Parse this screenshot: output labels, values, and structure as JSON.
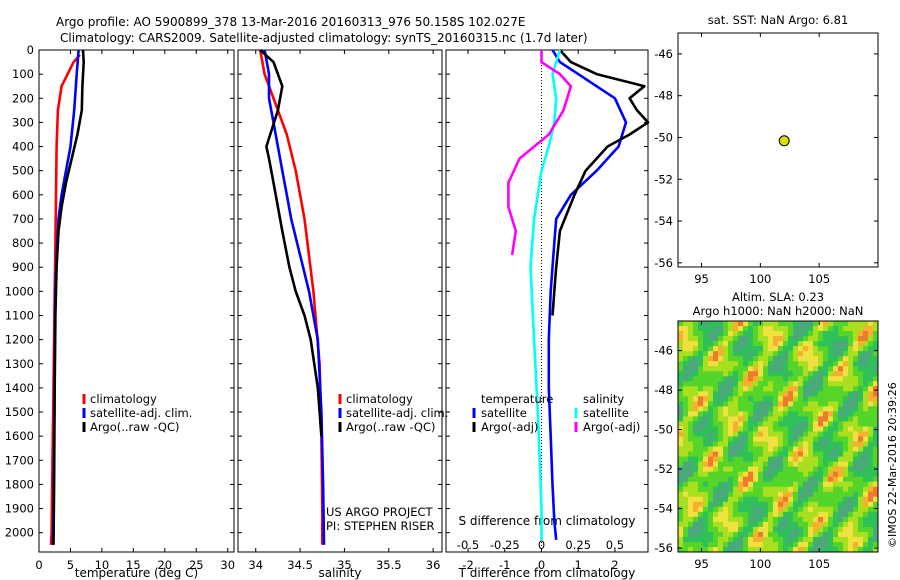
{
  "header": {
    "title_line1": "Argo profile: AO 5900899_378 13-Mar-2016 20160313_976 50.158S 102.027E",
    "title_line2": "Climatology: CARS2009. Satellite-adjusted climatology: synTS_20160315.nc (1.7d later)"
  },
  "colors": {
    "climatology": "#ff0000",
    "satellite": "#0000ff",
    "argo": "#000000",
    "salinity_sat": "#00ffff",
    "salinity_argo": "#ff00ff",
    "marker": "#dddd00"
  },
  "chart_data": [
    {
      "id": "temperature",
      "type": "line",
      "xlabel": "temperature (deg C)",
      "xlim": [
        0,
        31
      ],
      "ylim": [
        2080,
        0
      ],
      "xticks": [
        0,
        5,
        10,
        15,
        20,
        25,
        30
      ],
      "yticks": [
        0,
        100,
        200,
        300,
        400,
        500,
        600,
        700,
        800,
        900,
        1000,
        1100,
        1200,
        1300,
        1400,
        1500,
        1600,
        1700,
        1800,
        1900,
        2000
      ],
      "legend": [
        "climatology",
        "satellite-adj. clim.",
        "Argo(..raw -QC)"
      ],
      "series": [
        {
          "name": "climatology",
          "color": "#ff0000",
          "x": [
            6.5,
            5.5,
            3.6,
            3.0,
            2.8,
            2.7,
            2.6,
            2.5,
            2.4,
            2.3,
            2.2,
            2.1,
            2.0,
            1.9
          ],
          "y": [
            20,
            50,
            150,
            250,
            400,
            600,
            800,
            1000,
            1200,
            1400,
            1600,
            1800,
            2000,
            2050
          ]
        },
        {
          "name": "satellite-adj. clim.",
          "color": "#0000ff",
          "x": [
            6.3,
            6.0,
            5.6,
            5.0,
            4.3,
            3.6,
            3.1,
            2.8,
            2.6,
            2.5,
            2.4,
            2.3,
            2.2
          ],
          "y": [
            0,
            100,
            250,
            400,
            500,
            600,
            700,
            850,
            1000,
            1300,
            1600,
            1900,
            2050
          ]
        },
        {
          "name": "Argo(..raw -QC)",
          "color": "#000000",
          "x": [
            7.0,
            7.1,
            6.9,
            6.8,
            6.1,
            5.2,
            4.3,
            3.6,
            3.1,
            2.8,
            2.6,
            2.5,
            2.4,
            2.3
          ],
          "y": [
            0,
            50,
            150,
            250,
            350,
            450,
            550,
            650,
            750,
            900,
            1100,
            1400,
            1800,
            2050
          ]
        }
      ]
    },
    {
      "id": "salinity",
      "type": "line",
      "xlabel": "salinity",
      "xlim": [
        33.8,
        36.1
      ],
      "ylim": [
        2080,
        0
      ],
      "xticks": [
        34,
        34.5,
        35,
        35.5,
        36
      ],
      "xticklabels": [
        "34",
        "34.5",
        "35",
        "35.5",
        "36"
      ],
      "legend": [
        "climatology",
        "satellite-adj. clim.",
        "Argo(..raw -QC)"
      ],
      "annotations": [
        "US ARGO PROJECT",
        "PI: STEPHEN RISER"
      ],
      "series": [
        {
          "name": "climatology",
          "color": "#ff0000",
          "x": [
            34.05,
            34.1,
            34.2,
            34.35,
            34.45,
            34.55,
            34.65,
            34.72,
            34.74,
            34.75,
            34.75
          ],
          "y": [
            0,
            100,
            200,
            350,
            500,
            700,
            1000,
            1300,
            1600,
            1900,
            2050
          ]
        },
        {
          "name": "satellite-adj. clim.",
          "color": "#0000ff",
          "x": [
            34.1,
            34.15,
            34.15,
            34.2,
            34.25,
            34.3,
            34.35,
            34.4,
            34.5,
            34.6,
            34.7,
            34.74,
            34.76,
            34.77
          ],
          "y": [
            0,
            100,
            200,
            300,
            400,
            500,
            600,
            700,
            850,
            1000,
            1200,
            1500,
            1800,
            2050
          ]
        },
        {
          "name": "Argo(..raw -QC)",
          "color": "#000000",
          "x": [
            34.05,
            34.2,
            34.25,
            34.3,
            34.25,
            34.12,
            34.15,
            34.2,
            34.25,
            34.3,
            34.38,
            34.45,
            34.55,
            34.62,
            34.7,
            34.74
          ],
          "y": [
            0,
            50,
            100,
            150,
            250,
            400,
            450,
            550,
            650,
            750,
            900,
            1000,
            1100,
            1200,
            1400,
            1600
          ]
        }
      ]
    },
    {
      "id": "difference",
      "type": "line",
      "xlabel": "T difference from climatology",
      "xlabel_top": "S difference from climatology",
      "xlim": [
        -2.6,
        2.9
      ],
      "ylim": [
        2080,
        0
      ],
      "xticks": [
        -2,
        -1,
        0,
        1,
        2
      ],
      "top_xticks": [
        -0.5,
        -0.25,
        0,
        0.25,
        0.5
      ],
      "legend_headers": [
        "temperature",
        "salinity"
      ],
      "legend": [
        "satellite",
        "Argo(-adj)",
        "satellite",
        "Argo(-adj)"
      ],
      "series": [
        {
          "name": "temperature satellite",
          "color": "#0000ff",
          "x": [
            0.3,
            0.5,
            1.0,
            2.0,
            2.3,
            2.1,
            1.5,
            0.8,
            0.4,
            0.35,
            0.3,
            0.25,
            0.2,
            0.2,
            0.25,
            0.3,
            0.35,
            0.4
          ],
          "y": [
            0,
            50,
            100,
            200,
            300,
            400,
            500,
            600,
            700,
            800,
            900,
            1000,
            1200,
            1400,
            1600,
            1800,
            1950,
            2030
          ]
        },
        {
          "name": "temperature Argo(-adj)",
          "color": "#000000",
          "x": [
            0.5,
            0.8,
            1.5,
            2.8,
            2.4,
            2.6,
            2.9,
            2.4,
            1.8,
            1.5,
            1.2,
            0.9,
            0.5,
            0.4,
            0.35,
            0.3
          ],
          "y": [
            0,
            50,
            100,
            150,
            200,
            250,
            300,
            350,
            400,
            450,
            500,
            600,
            750,
            900,
            1000,
            1100
          ]
        },
        {
          "name": "salinity satellite",
          "color": "#00ffff",
          "x": [
            0.5,
            0.3,
            0.4,
            0.35,
            0.2,
            0.0,
            -0.2,
            -0.3,
            -0.2,
            -0.1,
            -0.05,
            0.0,
            0.0
          ],
          "y": [
            0,
            100,
            200,
            300,
            400,
            500,
            700,
            900,
            1200,
            1500,
            1700,
            1900,
            2030
          ]
        },
        {
          "name": "salinity Argo(-adj)",
          "color": "#ff00ff",
          "x": [
            0.0,
            0.0,
            0.5,
            0.8,
            0.6,
            0.2,
            -0.6,
            -0.9,
            -0.9,
            -0.7,
            -0.8
          ],
          "y": [
            0,
            50,
            100,
            150,
            250,
            350,
            450,
            550,
            650,
            750,
            850
          ]
        }
      ]
    },
    {
      "id": "sst_location",
      "type": "scatter",
      "title": "sat. SST: NaN Argo: 6.81",
      "xlim": [
        93,
        110
      ],
      "ylim": [
        -56.2,
        -45
      ],
      "xticks": [
        95,
        100,
        105
      ],
      "yticks": [
        -46,
        -48,
        -50,
        -52,
        -54,
        -56
      ],
      "points": [
        {
          "x": 102.027,
          "y": -50.158
        }
      ]
    },
    {
      "id": "sla_map",
      "type": "heatmap",
      "title_line1": "Altim. SLA: 0.23",
      "title_line2": "Argo h1000: NaN h2000: NaN",
      "xlim": [
        93,
        110
      ],
      "ylim": [
        -56.2,
        -44.5
      ],
      "xticks": [
        95,
        100,
        105
      ],
      "yticks": [
        -46,
        -48,
        -50,
        -52,
        -54,
        -56
      ]
    }
  ],
  "footer": {
    "stamp": "©IMOS 22-Mar-2016 20:39:26"
  }
}
